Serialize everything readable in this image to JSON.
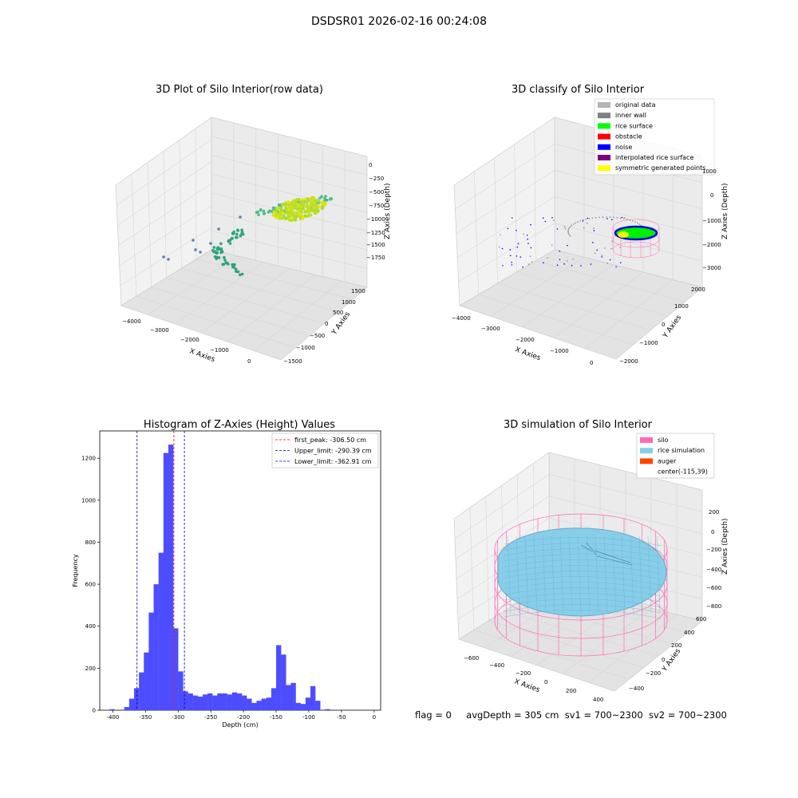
{
  "suptitle": "DSDSR01 2026-02-16 00:24:08",
  "panels": {
    "raw": {
      "title": "3D Plot of Silo Interior(row data)",
      "xlabel": "X Axies",
      "ylabel": "Y Axies",
      "zlabel": "Z Axies (Depth)",
      "xticks": [
        "−4000",
        "−3000",
        "−2000",
        "−1000",
        "0"
      ],
      "yticks": [
        "−1500",
        "−1000",
        "−500",
        "0",
        "500",
        "1000",
        "1500"
      ],
      "zticks": [
        "0",
        "−250",
        "−500",
        "−750",
        "−1000",
        "−1250",
        "−1500",
        "−1750"
      ]
    },
    "classify": {
      "title": "3D classify of Silo Interior",
      "xlabel": "X Axies",
      "ylabel": "Y Axies",
      "zlabel": "Z Axies (Depth)",
      "xticks": [
        "−4000",
        "−3000",
        "−2000",
        "−1000",
        "0"
      ],
      "yticks": [
        "−2000",
        "−1000",
        "0",
        "1000",
        "2000"
      ],
      "zticks": [
        "1000",
        "0",
        "−1000",
        "−2000",
        "−3000"
      ],
      "legend": [
        {
          "label": "original data",
          "color": "#b3b3b3"
        },
        {
          "label": "inner wall",
          "color": "#808080"
        },
        {
          "label": "rice surface",
          "color": "#00ff00"
        },
        {
          "label": "obstacle",
          "color": "#ff0000"
        },
        {
          "label": "noise",
          "color": "#0000ff"
        },
        {
          "label": "interpolated rice surface",
          "color": "#800080"
        },
        {
          "label": "symmetric generated points",
          "color": "#ffff00"
        }
      ]
    },
    "simulation": {
      "title": "3D simulation of Silo Interior",
      "xlabel": "X Axies",
      "ylabel": "Y Axies",
      "zlabel": "Z Axies (Depth)",
      "xticks": [
        "−600",
        "−400",
        "−200",
        "0",
        "200",
        "400"
      ],
      "yticks": [
        "−400",
        "−200",
        "0",
        "200",
        "400",
        "600"
      ],
      "zticks": [
        "200",
        "0",
        "−200",
        "−400",
        "−600",
        "−800"
      ],
      "legend": [
        {
          "label": "silo",
          "color": "#ff69b4"
        },
        {
          "label": "rice simulation",
          "color": "#87ceeb"
        },
        {
          "label": "auger",
          "color": "#ff4500"
        },
        {
          "label": "center(-115,39)",
          "color": ""
        }
      ]
    }
  },
  "chart_data": {
    "type": "bar",
    "title": "Histogram of Z-Axies (Height) Values",
    "xlabel": "Depth (cm)",
    "ylabel": "Frequency",
    "xlim": [
      -420,
      10
    ],
    "ylim": [
      0,
      1330
    ],
    "xticks": [
      -400,
      -350,
      -300,
      -250,
      -200,
      -150,
      -100,
      -50,
      0
    ],
    "yticks": [
      0,
      200,
      400,
      600,
      800,
      1000,
      1200
    ],
    "bin_start": -405,
    "bin_width": 7.5,
    "values": [
      5,
      0,
      0,
      15,
      55,
      105,
      180,
      275,
      465,
      600,
      750,
      1225,
      1265,
      390,
      185,
      90,
      80,
      70,
      65,
      75,
      80,
      70,
      80,
      80,
      75,
      85,
      80,
      70,
      55,
      35,
      45,
      55,
      60,
      105,
      310,
      265,
      120,
      130,
      35,
      30,
      60,
      115,
      45,
      0,
      5
    ],
    "bar_color": "#4d4dff",
    "lines": [
      {
        "label": "first_peak: -306.50 cm",
        "x": -306.5,
        "color": "#ff0000"
      },
      {
        "label": "Upper_limit: -290.39 cm",
        "x": -290.39,
        "color": "#0000aa"
      },
      {
        "label": "Lower_limit: -362.91 cm",
        "x": -362.91,
        "color": "#0000aa"
      }
    ],
    "legend_position": "top-right",
    "grid": false
  },
  "footer": {
    "flag": "flag = 0",
    "avg": "avgDepth = 305 cm",
    "sv1": "sv1 = 700~2300",
    "sv2": "sv2 = 700~2300"
  }
}
